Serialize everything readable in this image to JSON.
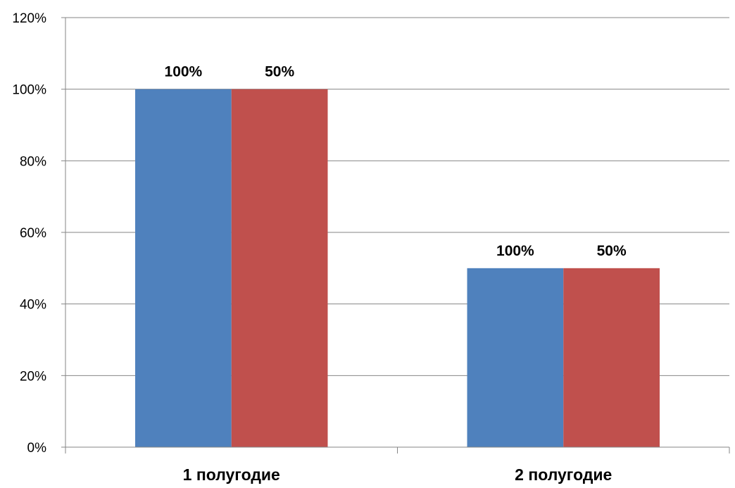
{
  "chart_data": {
    "type": "bar",
    "categories": [
      "1 полугодие",
      "2 полугодие"
    ],
    "series": [
      {
        "values": [
          100,
          50
        ],
        "color": "#4F81BD"
      },
      {
        "values": [
          100,
          50
        ],
        "color": "#C0504D"
      }
    ],
    "ylim": [
      0,
      120
    ],
    "yticks": [
      0,
      20,
      40,
      60,
      80,
      100,
      120
    ],
    "ytick_suffix": "%",
    "data_labels": [
      "100%",
      "50%",
      "100%",
      "50%"
    ],
    "grid": true,
    "legend": false
  }
}
